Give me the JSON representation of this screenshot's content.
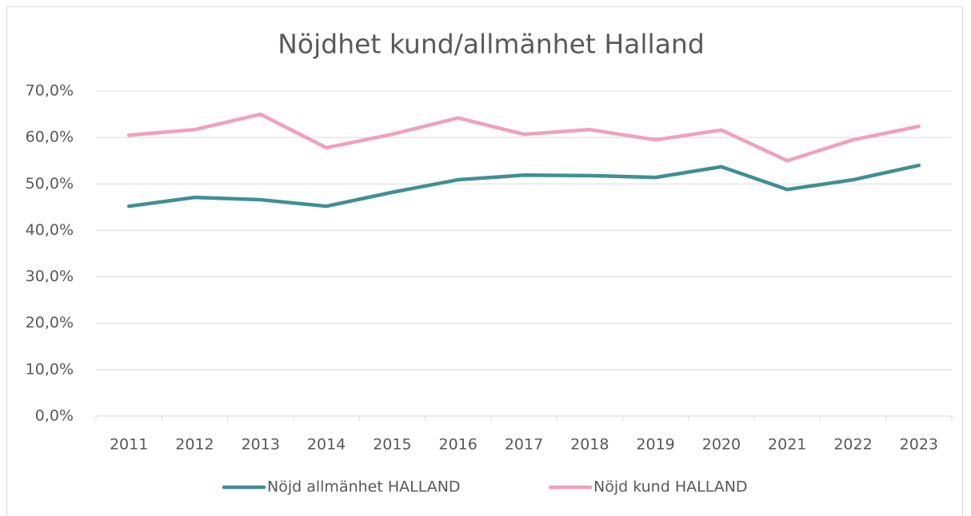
{
  "chart_data": {
    "type": "line",
    "title": "Nöjdhet kund/allmänhet Halland",
    "categories": [
      "2011",
      "2012",
      "2013",
      "2014",
      "2015",
      "2016",
      "2017",
      "2018",
      "2019",
      "2020",
      "2021",
      "2022",
      "2023"
    ],
    "series": [
      {
        "name": "Nöjd allmänhet HALLAND",
        "color": "#3f8f95",
        "values": [
          45.2,
          47.1,
          46.6,
          45.2,
          48.2,
          50.9,
          51.9,
          51.8,
          51.4,
          53.7,
          48.8,
          50.9,
          54.0
        ]
      },
      {
        "name": "Nöjd kund HALLAND",
        "color": "#f0a0bf",
        "values": [
          60.5,
          61.7,
          65.0,
          57.8,
          60.7,
          64.2,
          60.7,
          61.7,
          59.5,
          61.6,
          55.0,
          59.5,
          62.4
        ]
      }
    ],
    "ylim": [
      0,
      70
    ],
    "yticks": [
      {
        "value": 0,
        "label": "0,0%"
      },
      {
        "value": 10,
        "label": "10,0%"
      },
      {
        "value": 20,
        "label": "20,0%"
      },
      {
        "value": 30,
        "label": "30,0%"
      },
      {
        "value": 40,
        "label": "40,0%"
      },
      {
        "value": 50,
        "label": "50,0%"
      },
      {
        "value": 60,
        "label": "60,0%"
      },
      {
        "value": 70,
        "label": "70,0%"
      }
    ],
    "grid": true,
    "legend": "bottom"
  }
}
